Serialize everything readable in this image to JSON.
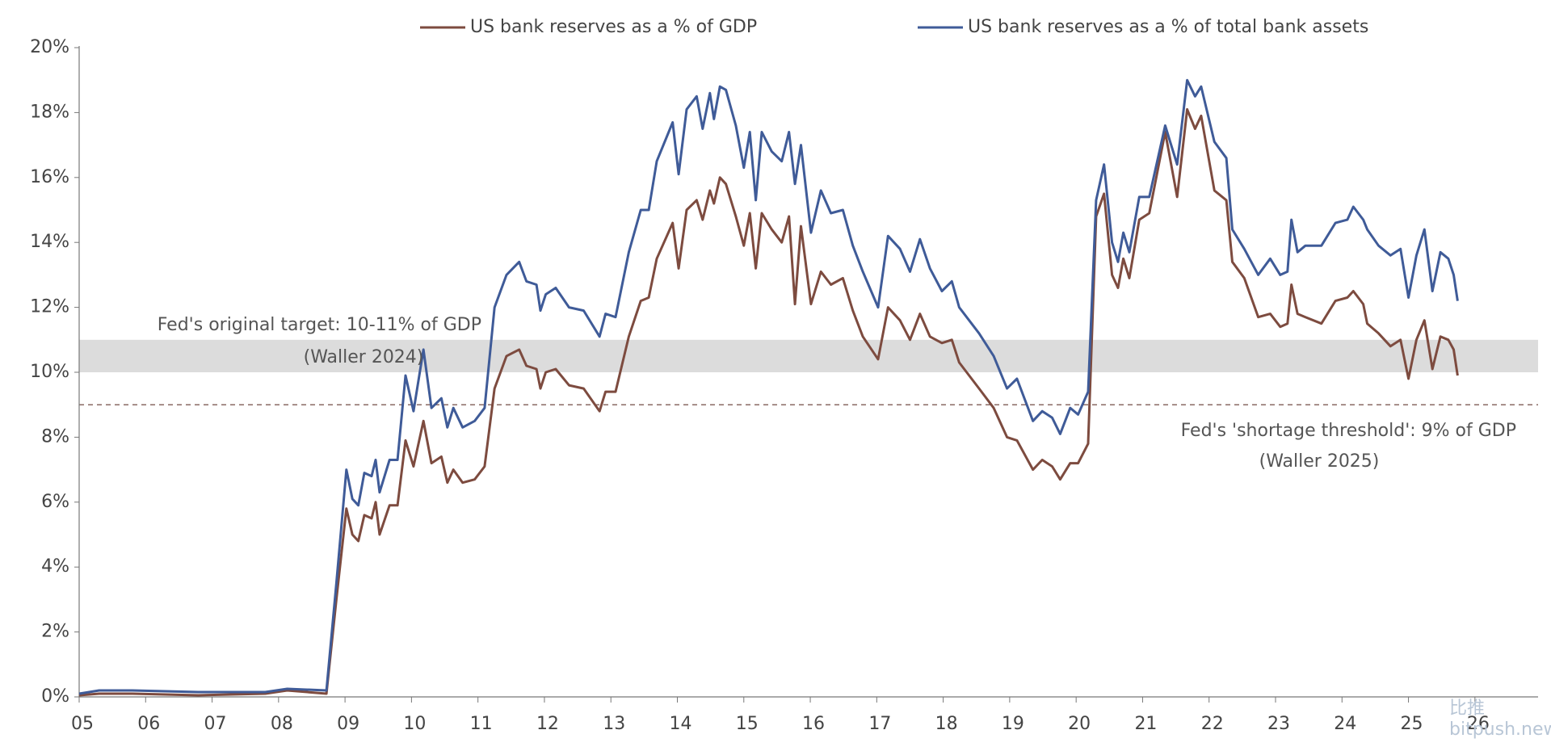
{
  "chart_data": {
    "type": "line",
    "legend": "top",
    "x": [
      2005.0,
      2005.3,
      2005.8,
      2006.79,
      2007.8,
      2008.13,
      2008.72,
      2008.87,
      2009.02,
      2009.11,
      2009.2,
      2009.29,
      2009.4,
      2009.46,
      2009.52,
      2009.67,
      2009.79,
      2009.91,
      2010.03,
      2010.18,
      2010.3,
      2010.45,
      2010.54,
      2010.63,
      2010.77,
      2010.95,
      2011.1,
      2011.25,
      2011.43,
      2011.62,
      2011.73,
      2011.88,
      2011.94,
      2012.02,
      2012.17,
      2012.37,
      2012.59,
      2012.83,
      2012.92,
      2013.07,
      2013.27,
      2013.45,
      2013.57,
      2013.69,
      2013.93,
      2014.02,
      2014.14,
      2014.29,
      2014.38,
      2014.49,
      2014.55,
      2014.64,
      2014.73,
      2014.88,
      2015.0,
      2015.09,
      2015.18,
      2015.27,
      2015.42,
      2015.57,
      2015.68,
      2015.77,
      2015.86,
      2016.01,
      2016.16,
      2016.31,
      2016.49,
      2016.64,
      2016.79,
      2017.02,
      2017.17,
      2017.35,
      2017.5,
      2017.65,
      2017.8,
      2017.98,
      2018.13,
      2018.24,
      2018.54,
      2018.76,
      2018.96,
      2019.11,
      2019.35,
      2019.49,
      2019.64,
      2019.76,
      2019.91,
      2020.03,
      2020.18,
      2020.3,
      2020.42,
      2020.54,
      2020.63,
      2020.71,
      2020.8,
      2020.95,
      2021.1,
      2021.34,
      2021.52,
      2021.67,
      2021.79,
      2021.88,
      2022.08,
      2022.26,
      2022.35,
      2022.53,
      2022.74,
      2022.92,
      2023.07,
      2023.18,
      2023.24,
      2023.33,
      2023.45,
      2023.69,
      2023.9,
      2024.08,
      2024.17,
      2024.32,
      2024.38,
      2024.55,
      2024.73,
      2024.88,
      2025.0,
      2025.12,
      2025.24,
      2025.36,
      2025.48,
      2025.6,
      2025.68,
      2025.74
    ],
    "series": [
      {
        "name": "US bank reserves as a % of GDP",
        "color": "#7d4b3f",
        "values": [
          0.05,
          0.1,
          0.1,
          0.05,
          0.1,
          0.2,
          0.1,
          3.0,
          5.8,
          5.0,
          4.8,
          5.6,
          5.5,
          6.0,
          5.0,
          5.9,
          5.9,
          7.9,
          7.1,
          8.5,
          7.2,
          7.4,
          6.6,
          7.0,
          6.6,
          6.7,
          7.1,
          9.5,
          10.5,
          10.7,
          10.2,
          10.1,
          9.5,
          10.0,
          10.1,
          9.6,
          9.5,
          8.8,
          9.4,
          9.4,
          11.1,
          12.2,
          12.3,
          13.5,
          14.6,
          13.2,
          15.0,
          15.3,
          14.7,
          15.6,
          15.2,
          16.0,
          15.8,
          14.8,
          13.9,
          14.9,
          13.2,
          14.9,
          14.4,
          14.0,
          14.8,
          12.1,
          14.5,
          12.1,
          13.1,
          12.7,
          12.9,
          11.9,
          11.1,
          10.4,
          12.0,
          11.6,
          11.0,
          11.8,
          11.1,
          10.9,
          11.0,
          10.3,
          9.5,
          8.9,
          8.0,
          7.9,
          7.0,
          7.3,
          7.1,
          6.7,
          7.2,
          7.2,
          7.8,
          14.8,
          15.5,
          13.0,
          12.6,
          13.5,
          12.9,
          14.7,
          14.9,
          17.4,
          15.4,
          18.1,
          17.5,
          17.9,
          15.6,
          15.3,
          13.4,
          12.9,
          11.7,
          11.8,
          11.4,
          11.5,
          12.7,
          11.8,
          11.7,
          11.5,
          12.2,
          12.3,
          12.5,
          12.1,
          11.5,
          11.2,
          10.8,
          11.0,
          9.8,
          11.0,
          11.6,
          10.1,
          11.1,
          11.0,
          10.7,
          9.9
        ]
      },
      {
        "name": "US bank reserves as a % of total bank assets",
        "color": "#3f5b98",
        "values": [
          0.1,
          0.2,
          0.2,
          0.15,
          0.15,
          0.25,
          0.2,
          3.5,
          7.0,
          6.1,
          5.9,
          6.9,
          6.8,
          7.3,
          6.3,
          7.3,
          7.3,
          9.9,
          8.8,
          10.7,
          8.9,
          9.2,
          8.3,
          8.9,
          8.3,
          8.5,
          8.9,
          12.0,
          13.0,
          13.4,
          12.8,
          12.7,
          11.9,
          12.4,
          12.6,
          12.0,
          11.9,
          11.1,
          11.8,
          11.7,
          13.7,
          15.0,
          15.0,
          16.5,
          17.7,
          16.1,
          18.1,
          18.5,
          17.5,
          18.6,
          17.8,
          18.8,
          18.7,
          17.6,
          16.3,
          17.4,
          15.3,
          17.4,
          16.8,
          16.5,
          17.4,
          15.8,
          17.0,
          14.3,
          15.6,
          14.9,
          15.0,
          13.9,
          13.1,
          12.0,
          14.2,
          13.8,
          13.1,
          14.1,
          13.2,
          12.5,
          12.8,
          12.0,
          11.2,
          10.5,
          9.5,
          9.8,
          8.5,
          8.8,
          8.6,
          8.1,
          8.9,
          8.7,
          9.4,
          15.3,
          16.4,
          14.0,
          13.4,
          14.3,
          13.7,
          15.4,
          15.4,
          17.6,
          16.4,
          19.0,
          18.5,
          18.8,
          17.1,
          16.6,
          14.4,
          13.8,
          13.0,
          13.5,
          13.0,
          13.1,
          14.7,
          13.7,
          13.9,
          13.9,
          14.6,
          14.7,
          15.1,
          14.7,
          14.4,
          13.9,
          13.6,
          13.8,
          12.3,
          13.6,
          14.4,
          12.5,
          13.7,
          13.5,
          13.0,
          12.2
        ]
      }
    ],
    "xlim": [
      2005,
      2026.95
    ],
    "xticks": [
      {
        "value": 2005,
        "label": "05"
      },
      {
        "value": 2006,
        "label": "06"
      },
      {
        "value": 2007,
        "label": "07"
      },
      {
        "value": 2008,
        "label": "08"
      },
      {
        "value": 2009,
        "label": "09"
      },
      {
        "value": 2010,
        "label": "10"
      },
      {
        "value": 2011,
        "label": "11"
      },
      {
        "value": 2012,
        "label": "12"
      },
      {
        "value": 2013,
        "label": "13"
      },
      {
        "value": 2014,
        "label": "14"
      },
      {
        "value": 2015,
        "label": "15"
      },
      {
        "value": 2016,
        "label": "16"
      },
      {
        "value": 2017,
        "label": "17"
      },
      {
        "value": 2018,
        "label": "18"
      },
      {
        "value": 2019,
        "label": "19"
      },
      {
        "value": 2020,
        "label": "20"
      },
      {
        "value": 2021,
        "label": "21"
      },
      {
        "value": 2022,
        "label": "22"
      },
      {
        "value": 2023,
        "label": "23"
      },
      {
        "value": 2024,
        "label": "24"
      },
      {
        "value": 2025,
        "label": "25"
      },
      {
        "value": 2026,
        "label": "26"
      }
    ],
    "ylim": [
      0,
      20
    ],
    "yticks": [
      {
        "value": 0,
        "label": "0%"
      },
      {
        "value": 2,
        "label": "2%"
      },
      {
        "value": 4,
        "label": "4%"
      },
      {
        "value": 6,
        "label": "6%"
      },
      {
        "value": 8,
        "label": "8%"
      },
      {
        "value": 10,
        "label": "10%"
      },
      {
        "value": 12,
        "label": "12%"
      },
      {
        "value": 14,
        "label": "14%"
      },
      {
        "value": 16,
        "label": "16%"
      },
      {
        "value": 18,
        "label": "18%"
      },
      {
        "value": 20,
        "label": "20%"
      }
    ],
    "grid": false,
    "band": {
      "range": [
        10,
        11
      ],
      "color": "#dcdcdc",
      "lines": [
        "Fed's original target: 10-11% of GDP",
        "(Waller 2024)"
      ]
    },
    "threshold": {
      "value": 9,
      "color": "#8a6a63",
      "lines": [
        "Fed's 'shortage threshold': 9% of GDP",
        "(Waller 2025)"
      ]
    },
    "watermark": [
      "比推",
      "bitpush.news"
    ]
  }
}
